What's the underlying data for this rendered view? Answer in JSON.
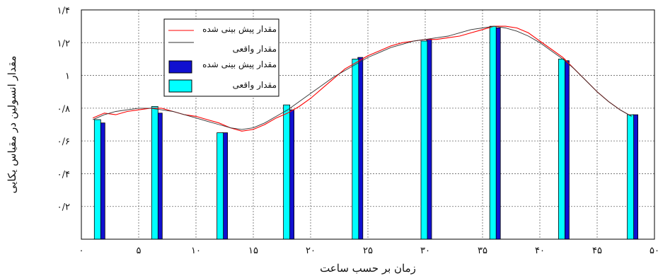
{
  "chart_data": {
    "type": "bar",
    "title": "",
    "xlabel": "زمان بر حسب ساعت",
    "ylabel": "مقدار انسولین در مقیاس یکایی",
    "xlim": [
      0,
      50
    ],
    "ylim": [
      0,
      1.4
    ],
    "grid": true,
    "legend_position": "top-left",
    "xticks": [
      {
        "value": 0,
        "label": "۰"
      },
      {
        "value": 5,
        "label": "۵"
      },
      {
        "value": 10,
        "label": "۱۰"
      },
      {
        "value": 15,
        "label": "۱۵"
      },
      {
        "value": 20,
        "label": "۲۰"
      },
      {
        "value": 25,
        "label": "۲۵"
      },
      {
        "value": 30,
        "label": "۳۰"
      },
      {
        "value": 35,
        "label": "۳۵"
      },
      {
        "value": 40,
        "label": "۴۰"
      },
      {
        "value": 45,
        "label": "۴۵"
      },
      {
        "value": 50,
        "label": "۵۰"
      }
    ],
    "yticks": [
      {
        "value": 0.2,
        "label": "۰/۲"
      },
      {
        "value": 0.4,
        "label": "۰/۴"
      },
      {
        "value": 0.6,
        "label": "۰/۶"
      },
      {
        "value": 0.8,
        "label": "۰/۸"
      },
      {
        "value": 1.0,
        "label": "۱"
      },
      {
        "value": 1.2,
        "label": "۱/۲"
      },
      {
        "value": 1.4,
        "label": "۱/۴"
      }
    ],
    "bar_series": [
      {
        "name": "مقدار پیش بینی شده",
        "color": "#1010d0",
        "x": [
          1.5,
          6.5,
          12.2,
          18.0,
          24.0,
          30.0,
          36.0,
          42.0,
          48.0
        ],
        "values": [
          0.71,
          0.77,
          0.65,
          0.79,
          1.11,
          1.22,
          1.29,
          1.09,
          0.76
        ]
      },
      {
        "name": "مقدار واقعی",
        "color": "#00ffff",
        "x": [
          1.5,
          6.5,
          12.2,
          18.0,
          24.0,
          30.0,
          36.0,
          42.0,
          48.0
        ],
        "values": [
          0.73,
          0.81,
          0.65,
          0.82,
          1.1,
          1.21,
          1.3,
          1.1,
          0.76
        ]
      }
    ],
    "line_series": [
      {
        "name": "مقدار پیش بینی شده",
        "color": "#ff0000",
        "x": [
          1,
          2,
          3,
          4,
          5,
          6,
          7,
          8,
          9,
          10,
          11,
          12,
          13,
          14,
          15,
          16,
          17,
          18,
          19,
          20,
          21,
          22,
          23,
          24,
          25,
          26,
          27,
          28,
          29,
          30,
          31,
          32,
          33,
          34,
          35,
          36,
          37,
          38,
          39,
          40,
          41,
          42,
          43,
          44,
          45,
          46,
          47,
          48
        ],
        "values": [
          0.74,
          0.77,
          0.76,
          0.78,
          0.79,
          0.8,
          0.8,
          0.78,
          0.76,
          0.75,
          0.73,
          0.71,
          0.68,
          0.66,
          0.67,
          0.7,
          0.74,
          0.77,
          0.81,
          0.86,
          0.92,
          0.98,
          1.04,
          1.08,
          1.12,
          1.15,
          1.18,
          1.2,
          1.21,
          1.22,
          1.22,
          1.23,
          1.24,
          1.26,
          1.28,
          1.3,
          1.3,
          1.29,
          1.26,
          1.21,
          1.16,
          1.11,
          1.04,
          0.97,
          0.9,
          0.84,
          0.79,
          0.75
        ]
      },
      {
        "name": "مقدار واقعی",
        "color": "#333333",
        "x": [
          1,
          2,
          3,
          4,
          5,
          6,
          7,
          8,
          9,
          10,
          11,
          12,
          13,
          14,
          15,
          16,
          17,
          18,
          19,
          20,
          21,
          22,
          23,
          24,
          25,
          26,
          27,
          28,
          29,
          30,
          31,
          32,
          33,
          34,
          35,
          36,
          37,
          38,
          39,
          40,
          41,
          42,
          43,
          44,
          45,
          46,
          47,
          48
        ],
        "values": [
          0.73,
          0.76,
          0.78,
          0.79,
          0.8,
          0.8,
          0.79,
          0.78,
          0.76,
          0.74,
          0.72,
          0.7,
          0.68,
          0.67,
          0.68,
          0.71,
          0.75,
          0.79,
          0.84,
          0.89,
          0.94,
          0.99,
          1.03,
          1.07,
          1.11,
          1.14,
          1.17,
          1.19,
          1.21,
          1.22,
          1.23,
          1.24,
          1.26,
          1.28,
          1.29,
          1.3,
          1.29,
          1.27,
          1.24,
          1.2,
          1.15,
          1.1,
          1.04,
          0.97,
          0.9,
          0.84,
          0.79,
          0.75
        ]
      }
    ]
  }
}
